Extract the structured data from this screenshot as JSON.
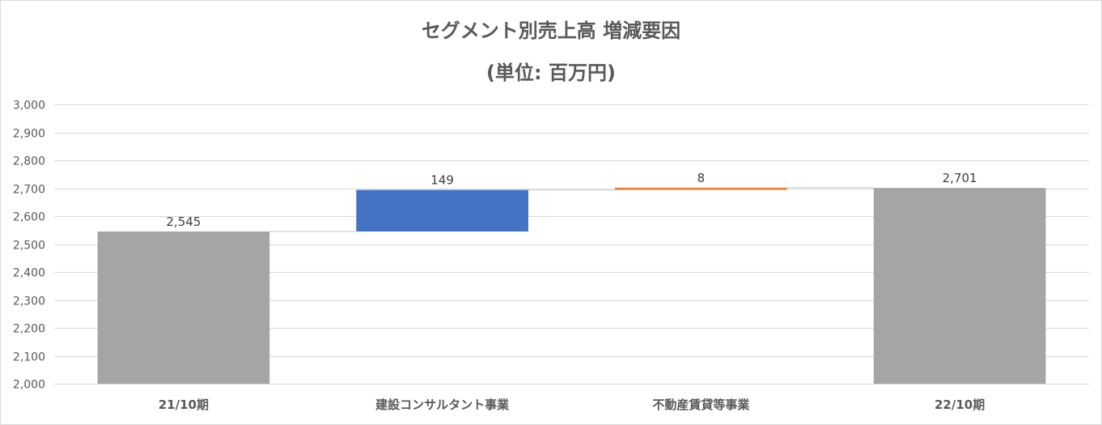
{
  "chart_data": {
    "type": "waterfall",
    "title": "セグメント別売上高 増減要因",
    "subtitle": "(単位: 百万円)",
    "categories": [
      "21/10期",
      "建設コンサルタント事業",
      "不動産賃貸等事業",
      "22/10期"
    ],
    "values": [
      2545,
      149,
      8,
      2701
    ],
    "data_labels": [
      "2,545",
      "149",
      "8",
      "2,701"
    ],
    "kinds": [
      "total",
      "increase",
      "increase",
      "total"
    ],
    "colors": {
      "total": "#a5a5a5",
      "increase_1": "#4472c4",
      "increase_2": "#ed7d31",
      "grid": "#d9d9d9"
    },
    "ylim": [
      2000,
      3000
    ],
    "yticks": [
      2000,
      2100,
      2200,
      2300,
      2400,
      2500,
      2600,
      2700,
      2800,
      2900,
      3000
    ],
    "ytick_labels": [
      "2,000",
      "2,100",
      "2,200",
      "2,300",
      "2,400",
      "2,500",
      "2,600",
      "2,700",
      "2,800",
      "2,900",
      "3,000"
    ],
    "grid": true,
    "legend": "none"
  }
}
